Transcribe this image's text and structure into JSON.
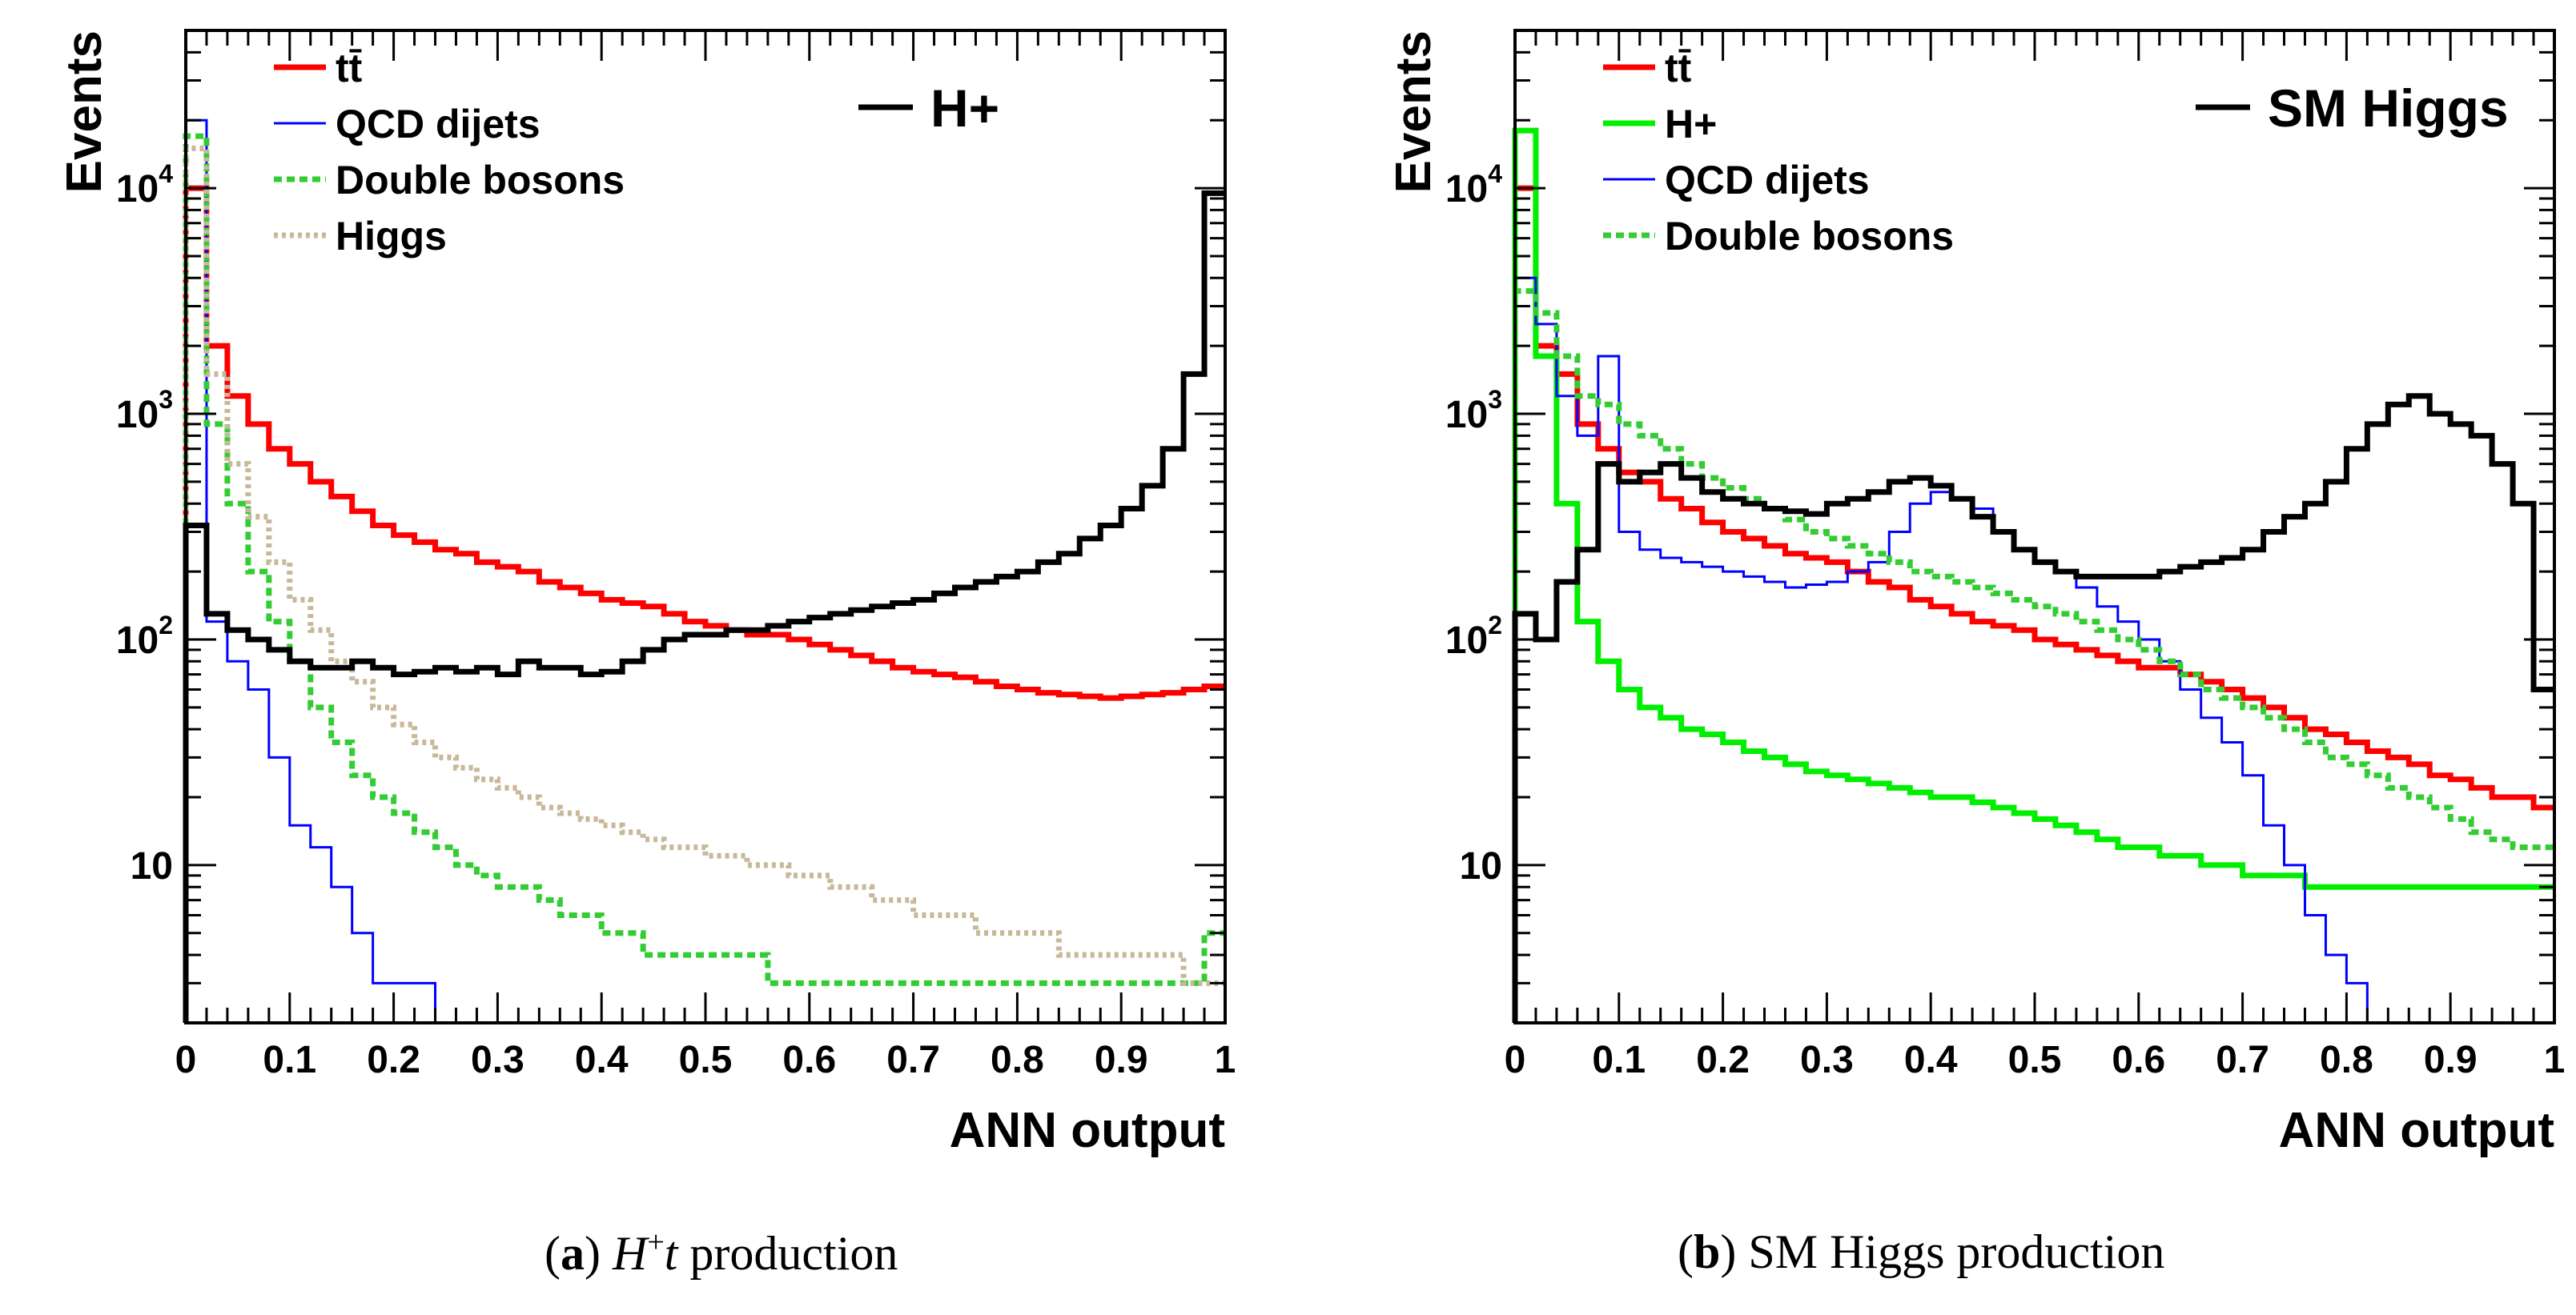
{
  "figure": {
    "captions": [
      {
        "label": "a",
        "math_symbol": "H",
        "math_sup": "+",
        "math_var": "t",
        "text": " production"
      },
      {
        "label": "b",
        "math_symbol": "",
        "math_sup": "",
        "math_var": "",
        "text": "SM Higgs production"
      }
    ]
  },
  "chart_data": [
    {
      "type": "step-histogram",
      "title": "H+",
      "xlabel": "ANN output",
      "ylabel": "Events",
      "yscale": "log",
      "xlim": [
        0,
        1
      ],
      "ylim": [
        2,
        50000
      ],
      "xticks": [
        "0",
        "0.1",
        "0.2",
        "0.3",
        "0.4",
        "0.5",
        "0.6",
        "0.7",
        "0.8",
        "0.9",
        "1"
      ],
      "yticks": [
        "10",
        "10^2",
        "10^3",
        "10^4"
      ],
      "bin_width": 0.02,
      "grid": false,
      "legend": [
        {
          "name": "tt̄",
          "color": "#ff0000",
          "style": "solid"
        },
        {
          "name": "QCD dijets",
          "color": "#0000ff",
          "style": "solid"
        },
        {
          "name": "Double bosons",
          "color": "#33cc33",
          "style": "dotted"
        },
        {
          "name": "Higgs",
          "color": "#c8b89a",
          "style": "dotted"
        }
      ],
      "signal_legend": {
        "name": "H+",
        "color": "#000000"
      },
      "series": [
        {
          "name": "tt̄",
          "color": "#ff0000",
          "style": "solid",
          "values": [
            10000,
            2000,
            1200,
            900,
            700,
            600,
            500,
            430,
            370,
            320,
            290,
            270,
            250,
            240,
            220,
            210,
            200,
            180,
            170,
            160,
            150,
            145,
            140,
            130,
            120,
            115,
            110,
            105,
            105,
            100,
            95,
            90,
            85,
            80,
            75,
            72,
            70,
            68,
            65,
            62,
            60,
            58,
            57,
            56,
            55,
            56,
            57,
            58,
            60,
            62
          ]
        },
        {
          "name": "QCD dijets",
          "color": "#0000ff",
          "style": "solid",
          "values": [
            20000,
            120,
            80,
            60,
            30,
            15,
            12,
            8,
            5,
            3,
            3,
            3,
            2,
            2,
            2,
            2,
            2,
            2,
            2,
            2,
            2,
            2,
            2,
            2,
            2,
            2,
            2,
            2,
            2,
            2,
            2,
            2,
            2,
            2,
            2,
            2,
            2,
            2,
            2,
            2,
            2,
            2,
            2,
            2,
            2,
            2,
            2,
            2,
            2,
            2
          ]
        },
        {
          "name": "Double bosons",
          "color": "#33cc33",
          "style": "dotted",
          "values": [
            17000,
            900,
            400,
            200,
            120,
            80,
            50,
            35,
            25,
            20,
            17,
            14,
            12,
            10,
            9,
            8,
            8,
            7,
            6,
            6,
            5,
            5,
            4,
            4,
            4,
            4,
            4,
            4,
            3,
            3,
            3,
            3,
            3,
            3,
            3,
            3,
            3,
            3,
            3,
            3,
            3,
            3,
            3,
            3,
            3,
            3,
            3,
            3,
            3,
            5
          ]
        },
        {
          "name": "Higgs",
          "color": "#c8b89a",
          "style": "dotted",
          "values": [
            15000,
            1500,
            600,
            350,
            220,
            150,
            110,
            80,
            65,
            50,
            42,
            35,
            30,
            27,
            24,
            22,
            20,
            18,
            17,
            16,
            15,
            14,
            13,
            12,
            12,
            11,
            11,
            10,
            10,
            9,
            9,
            8,
            8,
            7,
            7,
            6,
            6,
            6,
            5,
            5,
            5,
            5,
            4,
            4,
            4,
            4,
            4,
            4,
            3,
            3
          ]
        },
        {
          "name": "H+",
          "color": "#000000",
          "style": "solid",
          "values": [
            320,
            130,
            110,
            100,
            90,
            80,
            75,
            75,
            80,
            75,
            70,
            72,
            75,
            72,
            75,
            70,
            80,
            75,
            75,
            70,
            72,
            80,
            90,
            100,
            105,
            105,
            110,
            110,
            115,
            120,
            125,
            130,
            135,
            140,
            145,
            150,
            160,
            170,
            180,
            190,
            200,
            220,
            240,
            280,
            320,
            380,
            480,
            700,
            1500,
            9500
          ]
        }
      ]
    },
    {
      "type": "step-histogram",
      "title": "SM Higgs",
      "xlabel": "ANN output",
      "ylabel": "Events",
      "yscale": "log",
      "xlim": [
        0,
        1
      ],
      "ylim": [
        2,
        50000
      ],
      "xticks": [
        "0",
        "0.1",
        "0.2",
        "0.3",
        "0.4",
        "0.5",
        "0.6",
        "0.7",
        "0.8",
        "0.9",
        "1"
      ],
      "yticks": [
        "10",
        "10^2",
        "10^3",
        "10^4"
      ],
      "bin_width": 0.02,
      "grid": false,
      "legend": [
        {
          "name": "tt̄",
          "color": "#ff0000",
          "style": "solid"
        },
        {
          "name": "H+",
          "color": "#00ee00",
          "style": "solid"
        },
        {
          "name": "QCD dijets",
          "color": "#0000ff",
          "style": "solid"
        },
        {
          "name": "Double bosons",
          "color": "#33cc33",
          "style": "dotted"
        }
      ],
      "signal_legend": {
        "name": "SM Higgs",
        "color": "#000000"
      },
      "series": [
        {
          "name": "tt̄",
          "color": "#ff0000",
          "style": "solid",
          "values": [
            10000,
            2000,
            1500,
            900,
            700,
            550,
            500,
            420,
            380,
            330,
            300,
            280,
            260,
            240,
            230,
            220,
            200,
            180,
            170,
            150,
            140,
            130,
            120,
            115,
            110,
            100,
            95,
            90,
            85,
            80,
            75,
            75,
            70,
            65,
            60,
            55,
            50,
            45,
            40,
            38,
            35,
            32,
            30,
            28,
            25,
            24,
            22,
            20,
            20,
            18
          ]
        },
        {
          "name": "H+",
          "color": "#00ee00",
          "style": "solid",
          "values": [
            18000,
            1800,
            400,
            120,
            80,
            60,
            50,
            45,
            40,
            38,
            35,
            32,
            30,
            28,
            26,
            25,
            24,
            23,
            22,
            21,
            20,
            20,
            19,
            18,
            17,
            16,
            15,
            14,
            13,
            12,
            12,
            11,
            11,
            10,
            10,
            9,
            9,
            9,
            8,
            8,
            8,
            8,
            8,
            8,
            8,
            8,
            8,
            8,
            8,
            8
          ]
        },
        {
          "name": "QCD dijets",
          "color": "#0000ff",
          "style": "solid",
          "values": [
            4000,
            2500,
            1200,
            800,
            1800,
            300,
            250,
            230,
            220,
            210,
            200,
            190,
            180,
            170,
            175,
            180,
            200,
            220,
            300,
            400,
            450,
            420,
            380,
            300,
            250,
            220,
            200,
            170,
            140,
            120,
            100,
            80,
            60,
            45,
            35,
            25,
            15,
            10,
            6,
            4,
            3,
            2,
            2,
            2,
            2,
            2,
            2,
            2,
            2,
            2
          ]
        },
        {
          "name": "Double bosons",
          "color": "#33cc33",
          "style": "dotted",
          "values": [
            3500,
            2800,
            1800,
            1200,
            1100,
            900,
            800,
            700,
            600,
            520,
            470,
            420,
            380,
            340,
            300,
            280,
            260,
            240,
            220,
            200,
            190,
            180,
            170,
            160,
            150,
            140,
            130,
            120,
            110,
            100,
            90,
            80,
            70,
            60,
            55,
            50,
            45,
            40,
            35,
            30,
            28,
            25,
            22,
            20,
            18,
            16,
            14,
            13,
            12,
            12
          ]
        },
        {
          "name": "SM Higgs",
          "color": "#000000",
          "style": "solid",
          "values": [
            130,
            100,
            180,
            250,
            600,
            500,
            550,
            600,
            520,
            450,
            420,
            400,
            380,
            370,
            360,
            400,
            420,
            450,
            500,
            520,
            480,
            420,
            350,
            300,
            250,
            220,
            200,
            190,
            190,
            190,
            190,
            200,
            210,
            220,
            230,
            250,
            300,
            350,
            400,
            500,
            700,
            900,
            1100,
            1200,
            1000,
            900,
            800,
            600,
            400,
            60
          ]
        }
      ]
    }
  ]
}
